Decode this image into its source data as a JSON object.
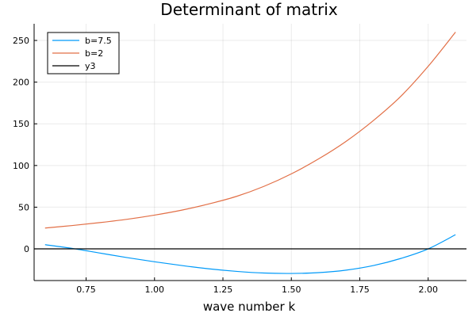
{
  "chart_data": {
    "type": "line",
    "title": "Determinant of matrix",
    "xlabel": "wave number k",
    "ylabel": "",
    "xlim": [
      0.56,
      2.14
    ],
    "ylim": [
      -38,
      270
    ],
    "xticks": [
      0.75,
      1.0,
      1.25,
      1.5,
      1.75,
      2.0
    ],
    "xtick_labels": [
      "0.75",
      "1.00",
      "1.25",
      "1.50",
      "1.75",
      "2.00"
    ],
    "yticks": [
      0,
      50,
      100,
      150,
      200,
      250
    ],
    "ytick_labels": [
      "0",
      "50",
      "100",
      "150",
      "200",
      "250"
    ],
    "grid": true,
    "legend_position": "top-left",
    "series": [
      {
        "name": "b=7.5",
        "color": "#009af9",
        "x": [
          0.6,
          0.7,
          0.8,
          0.9,
          1.0,
          1.1,
          1.2,
          1.3,
          1.4,
          1.5,
          1.6,
          1.7,
          1.8,
          1.9,
          2.0,
          2.1
        ],
        "y": [
          5,
          0.5,
          -5,
          -10.5,
          -15.5,
          -20,
          -24,
          -27,
          -29,
          -29.5,
          -28.5,
          -25.5,
          -20,
          -11.5,
          0,
          17
        ]
      },
      {
        "name": "b=2",
        "color": "#e26f46",
        "x": [
          0.6,
          0.7,
          0.8,
          0.9,
          1.0,
          1.1,
          1.2,
          1.3,
          1.4,
          1.5,
          1.6,
          1.7,
          1.8,
          1.9,
          2.0,
          2.1
        ],
        "y": [
          25,
          28,
          31.5,
          35.5,
          40.5,
          46.5,
          54,
          63,
          75,
          90,
          108,
          129,
          154,
          183,
          219,
          260
        ]
      },
      {
        "name": "y3",
        "color": "#000000",
        "x": [
          0.56,
          2.14
        ],
        "y": [
          0,
          0
        ]
      }
    ]
  }
}
